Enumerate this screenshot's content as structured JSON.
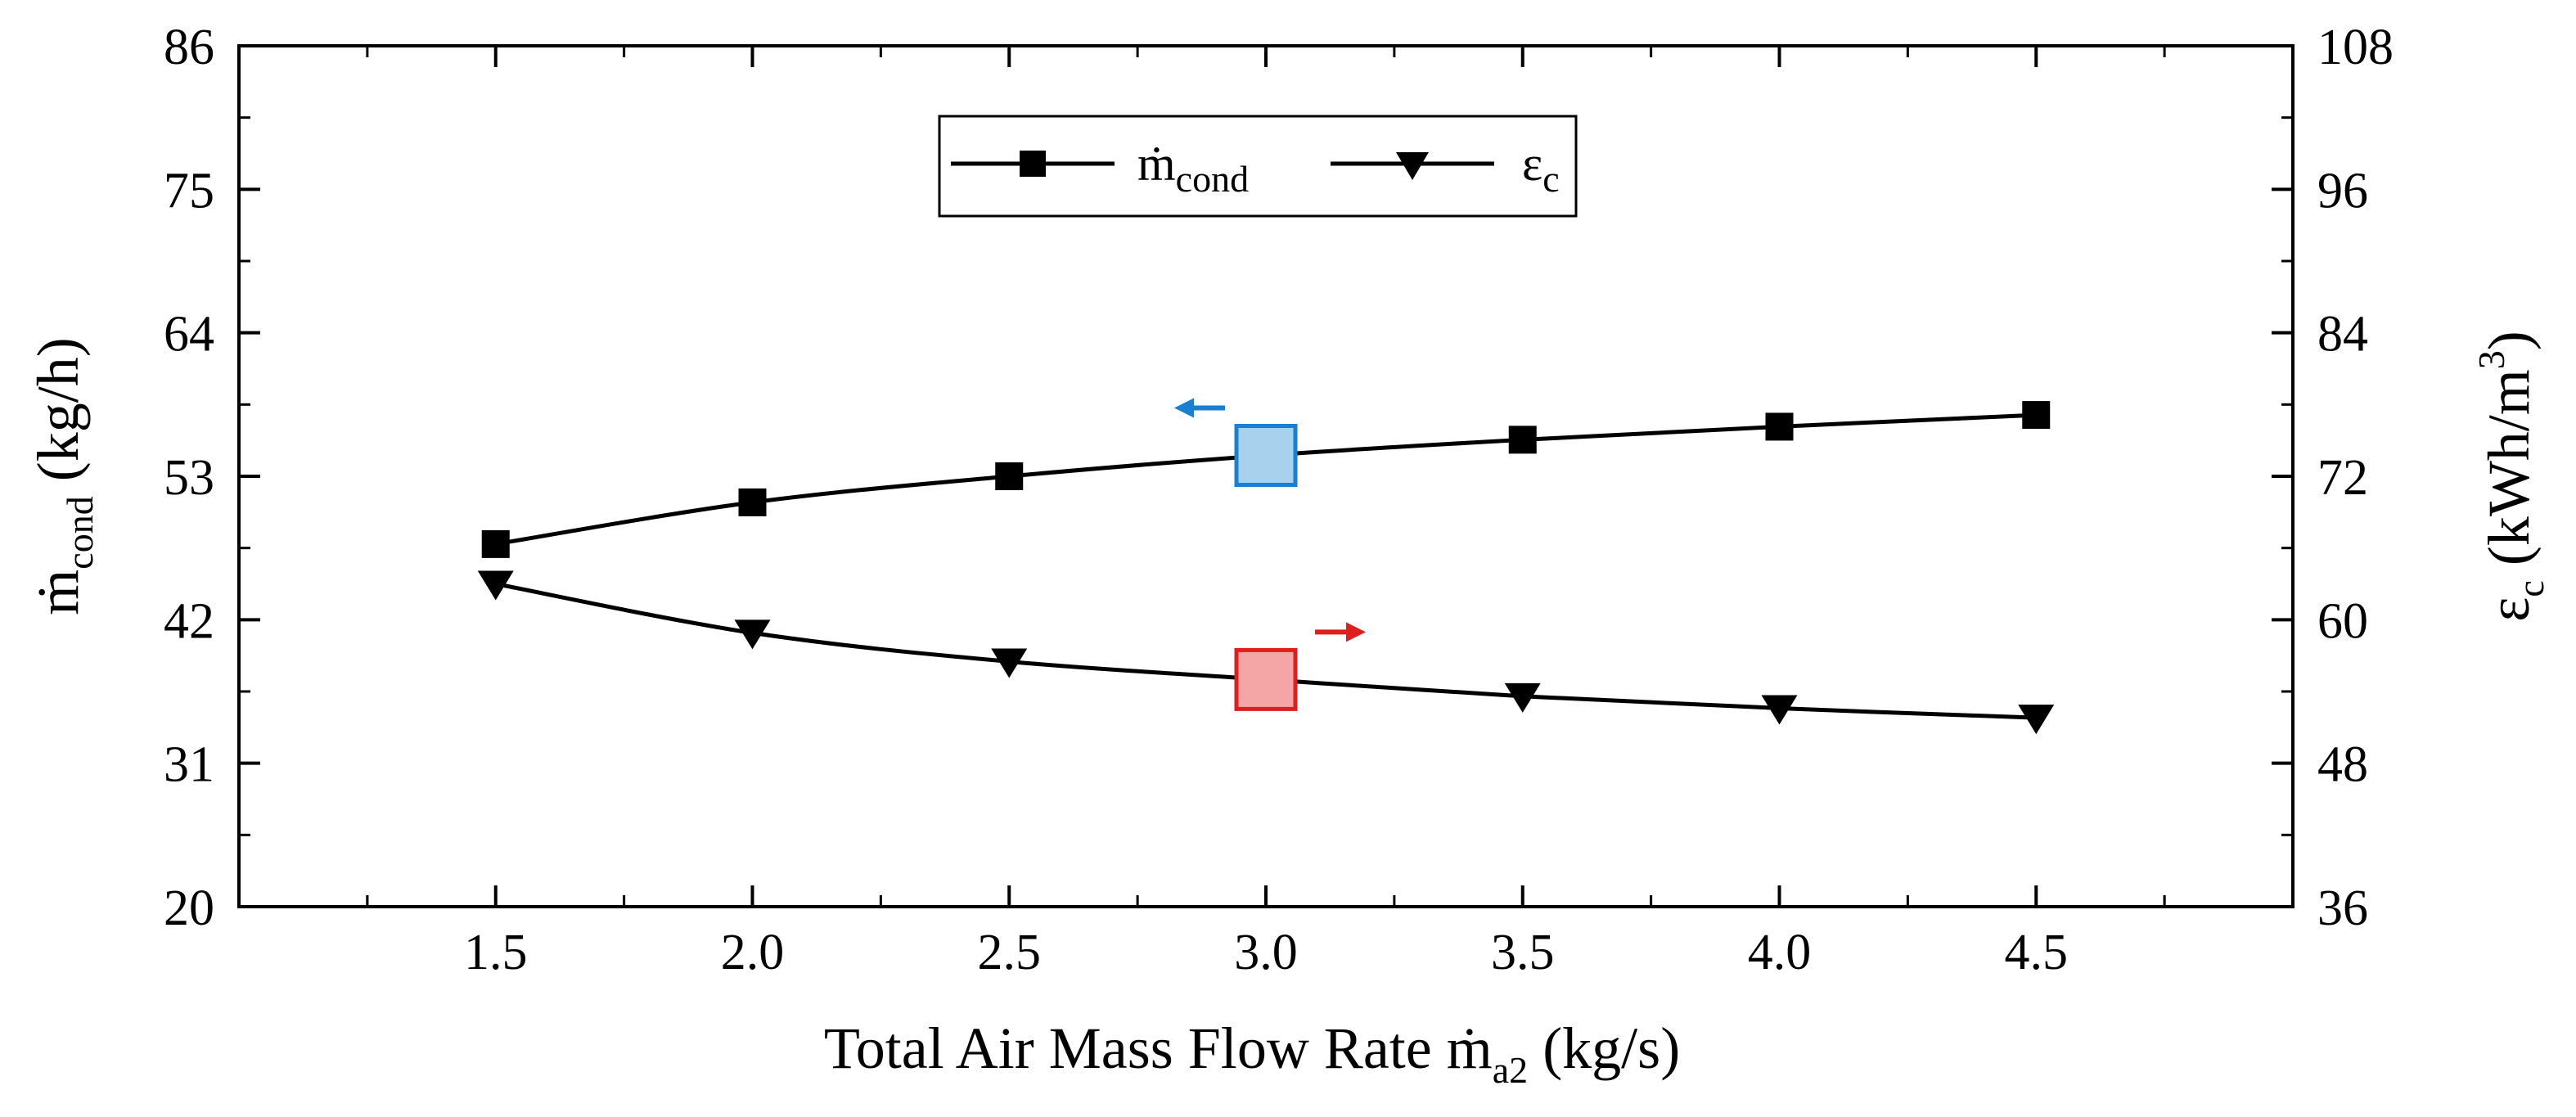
{
  "chart_data": {
    "type": "line",
    "x": [
      1.5,
      2.0,
      2.5,
      3.0,
      3.5,
      4.0,
      4.5
    ],
    "xlim": [
      1.0,
      5.0
    ],
    "x_ticks": [
      "1.5",
      "2.0",
      "2.5",
      "3.0",
      "3.5",
      "4.0",
      "4.5"
    ],
    "xlabel": {
      "main": "Total Air Mass Flow Rate ",
      "symbol": "ṁ",
      "sub": "a2",
      "unit": " (kg/s)"
    },
    "y_left": {
      "lim": [
        20,
        86
      ],
      "ticks": [
        "20",
        "31",
        "42",
        "53",
        "64",
        "75",
        "86"
      ],
      "label": {
        "symbol": "ṁ",
        "sub": "cond",
        "unit": " (kg/h)"
      }
    },
    "y_right": {
      "lim": [
        36,
        108
      ],
      "ticks": [
        "36",
        "48",
        "60",
        "72",
        "84",
        "96",
        "108"
      ],
      "label": {
        "symbol": "ε",
        "sub": "c",
        "unit": " (kWh/m",
        "sup": "3",
        "close": ")"
      }
    },
    "series": [
      {
        "name": "m_cond",
        "legend_symbol": "ṁ",
        "legend_sub": "cond",
        "marker": "square",
        "axis": "left",
        "values": [
          47.8,
          51.0,
          53.0,
          54.6,
          55.8,
          56.8,
          57.7
        ]
      },
      {
        "name": "eps_c",
        "legend_symbol": "ε",
        "legend_sub": "c",
        "marker": "triangle-down",
        "axis": "right",
        "values": [
          63.0,
          58.9,
          56.5,
          55.0,
          53.6,
          52.6,
          51.8
        ]
      }
    ],
    "highlights": [
      {
        "series": "m_cond",
        "x": 3.0,
        "fill": "#a8d1ee",
        "stroke": "#1a7fd0",
        "arrow": "left",
        "arrow_color": "#1a7fd0"
      },
      {
        "series": "eps_c",
        "x": 3.0,
        "fill": "#f4a6a6",
        "stroke": "#e01e1e",
        "arrow": "right",
        "arrow_color": "#e01e1e"
      }
    ],
    "legend_position": "top-center"
  }
}
